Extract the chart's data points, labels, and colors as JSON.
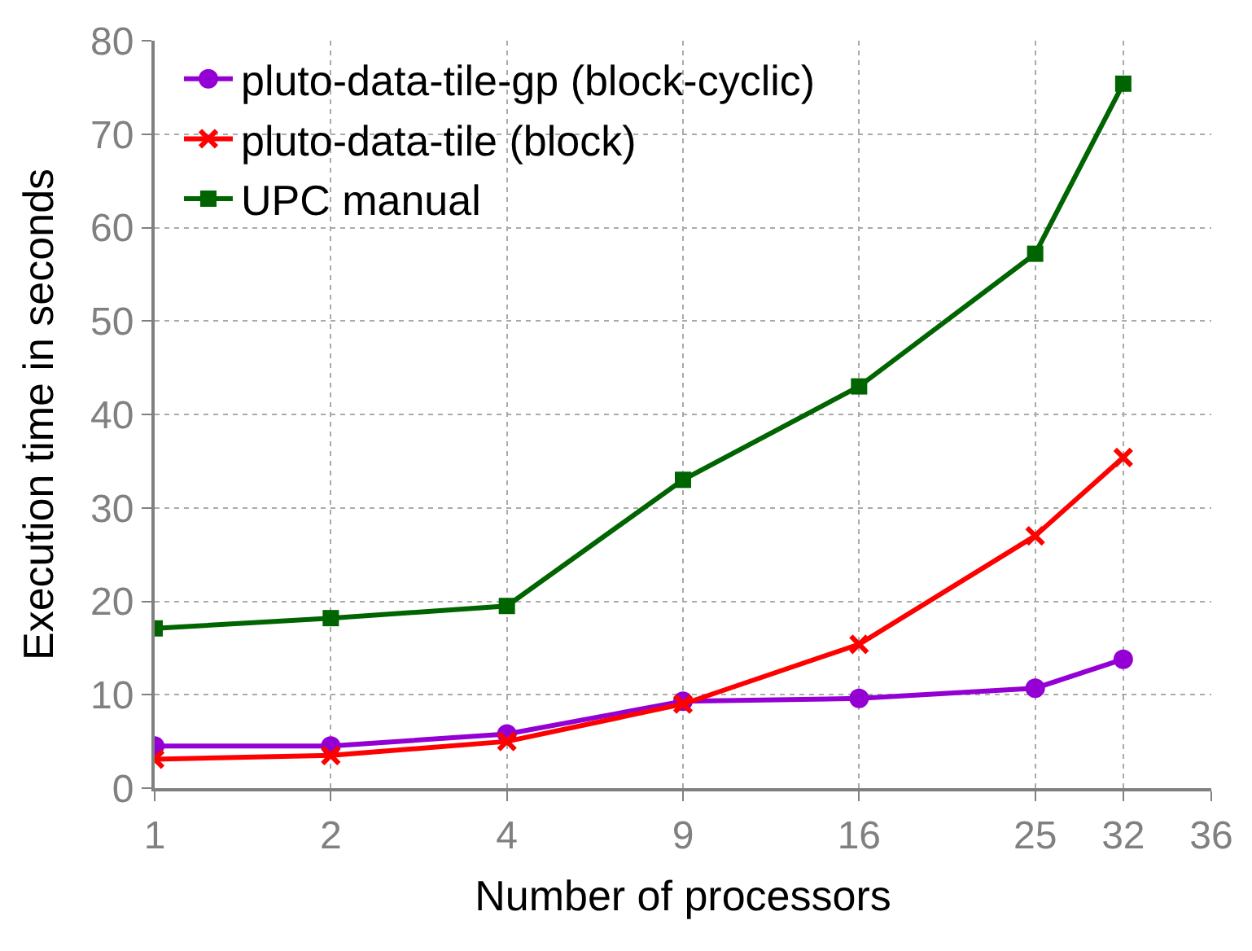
{
  "chart_data": {
    "type": "line",
    "xlabel": "Number of processors",
    "ylabel": "Execution time in seconds",
    "categories": [
      "1",
      null,
      "2",
      null,
      "4",
      null,
      "9",
      null,
      "16",
      null,
      "25",
      "32",
      "36"
    ],
    "ylim": [
      0,
      80
    ],
    "yticks": [
      0,
      10,
      20,
      30,
      40,
      50,
      60,
      70,
      80
    ],
    "grid": true,
    "legend": "top left",
    "line_style": "solid",
    "series": [
      {
        "name": "pluto-data-tile-gp (block-cyclic)",
        "color": "#9400d3",
        "marker": "circle",
        "values": [
          4.5,
          null,
          4.5,
          null,
          5.8,
          null,
          9.3,
          null,
          9.6,
          null,
          10.7,
          13.8,
          null
        ]
      },
      {
        "name": "pluto-data-tile (block)",
        "color": "#ff0000",
        "marker": "cross",
        "values": [
          3.1,
          null,
          3.5,
          null,
          5.0,
          null,
          9.0,
          null,
          15.4,
          null,
          27.0,
          35.4,
          null
        ]
      },
      {
        "name": "UPC manual",
        "color": "#006400",
        "marker": "square",
        "values": [
          17.1,
          null,
          18.2,
          null,
          19.5,
          null,
          33.0,
          null,
          43.0,
          null,
          57.2,
          75.4,
          null
        ]
      }
    ]
  }
}
